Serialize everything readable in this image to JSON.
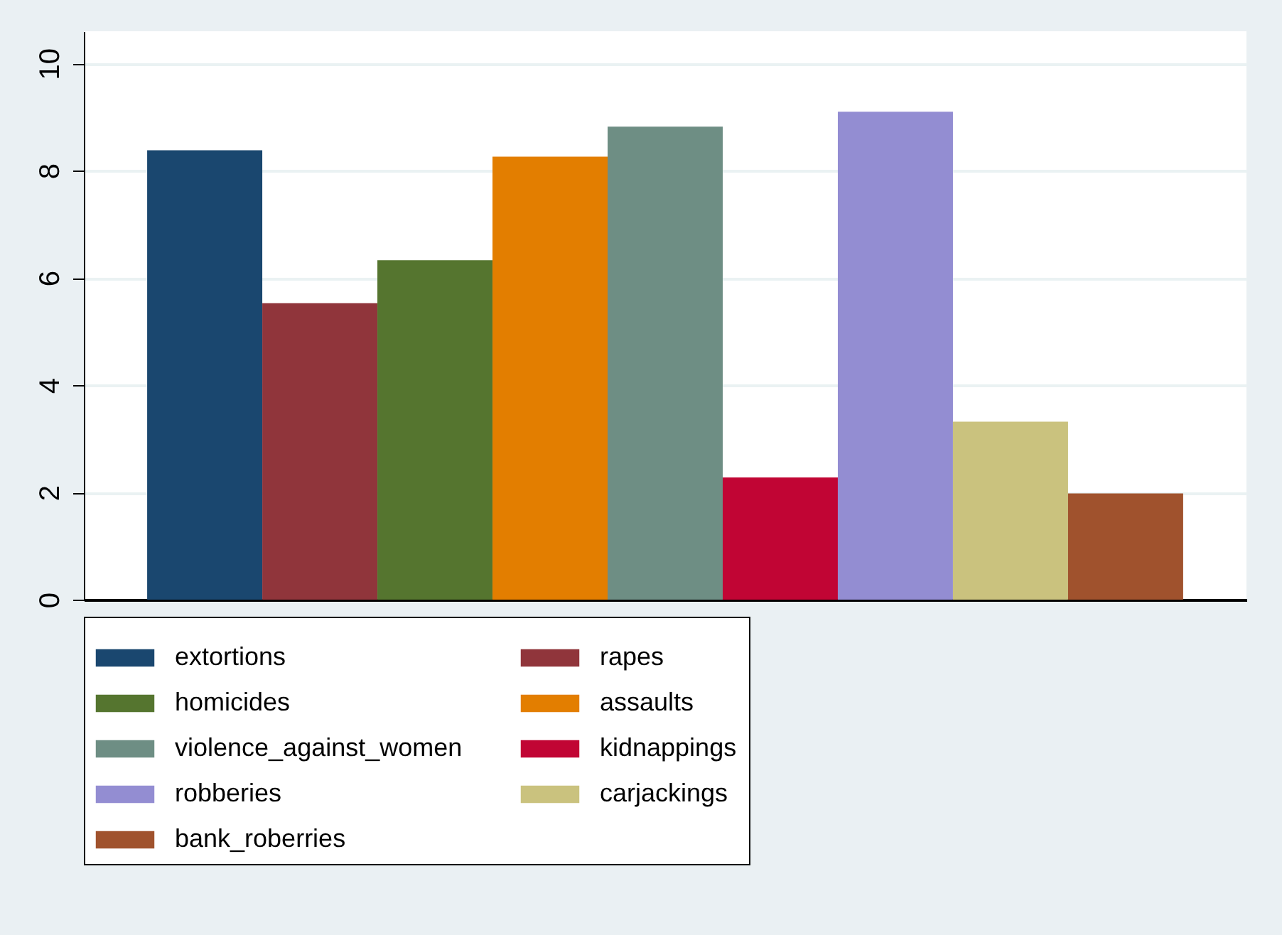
{
  "chart_data": {
    "type": "bar",
    "categories": [
      null
    ],
    "series": [
      {
        "name": "extortions",
        "color": "#1a476f",
        "values": [
          8.38
        ]
      },
      {
        "name": "rapes",
        "color": "#90353b",
        "values": [
          5.53
        ]
      },
      {
        "name": "homicides",
        "color": "#55752f",
        "values": [
          6.33
        ]
      },
      {
        "name": "assaults",
        "color": "#e37e00",
        "values": [
          8.26
        ]
      },
      {
        "name": "violence_against_women",
        "color": "#6e8e84",
        "values": [
          8.82
        ]
      },
      {
        "name": "kidnappings",
        "color": "#c10534",
        "values": [
          2.28
        ]
      },
      {
        "name": "robberies",
        "color": "#938dd2",
        "values": [
          9.1
        ]
      },
      {
        "name": "carjackings",
        "color": "#cac27e",
        "values": [
          3.32
        ]
      },
      {
        "name": "bank_roberries",
        "color": "#a0522d",
        "values": [
          1.98
        ]
      }
    ],
    "ylim": [
      0,
      10.6
    ],
    "yticks": [
      0,
      2,
      4,
      6,
      8,
      10
    ],
    "grid": "y",
    "legend": "bottom",
    "tick_labels": "y"
  }
}
